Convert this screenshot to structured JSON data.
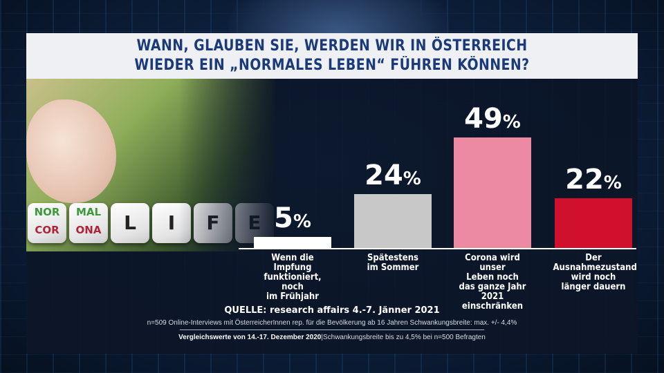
{
  "title": {
    "line1": "WANN, GLAUBEN SIE, WERDEN WIR IN ÖSTERREICH",
    "line2": "WIEDER EIN „NORMALES LEBEN“ FÜHREN KÖNNEN?"
  },
  "photo": {
    "dice": [
      {
        "top": "NOR",
        "bottom": "COR"
      },
      {
        "top": "MAL",
        "bottom": "ONA"
      }
    ],
    "word_letters": [
      "L",
      "I",
      "F",
      "E"
    ]
  },
  "chart_data": {
    "type": "bar",
    "title": "WANN, GLAUBEN SIE, WERDEN WIR IN ÖSTERREICH WIEDER EIN „NORMALES LEBEN“ FÜHREN KÖNNEN?",
    "ylim": [
      0,
      100
    ],
    "grid": false,
    "legend": "none",
    "categories": [
      [
        "Wenn die Impfung",
        "funktioniert, noch",
        "im Frühjahr"
      ],
      [
        "Spätestens",
        "im Sommer"
      ],
      [
        "Corona wird unser",
        "Leben noch",
        "das ganze Jahr 2021",
        "einschränken"
      ],
      [
        "Der",
        "Ausnahmezustand",
        "wird noch",
        "länger dauern"
      ]
    ],
    "values": [
      5,
      24,
      49,
      22
    ],
    "value_labels": [
      "5",
      "24",
      "49",
      "22"
    ],
    "unit": "%",
    "colors": [
      "#ffffff",
      "#c8c8c8",
      "#ec8aa2",
      "#d0102c"
    ]
  },
  "source": "QUELLE: research affairs 4.-7. Jänner 2021",
  "note": "n=509 Online-Interviews mit ÖsterreicherInnen rep. für die Bevölkerung ab 16 Jahren  Schwankungsbreite: max. +/- 4,4%",
  "compare": {
    "bold": "Vergleichswerte von 14.-17. Dezember 2020",
    "rest": "|Schwankungsbreite bis zu 4,5% bei n=500 Befragten"
  }
}
